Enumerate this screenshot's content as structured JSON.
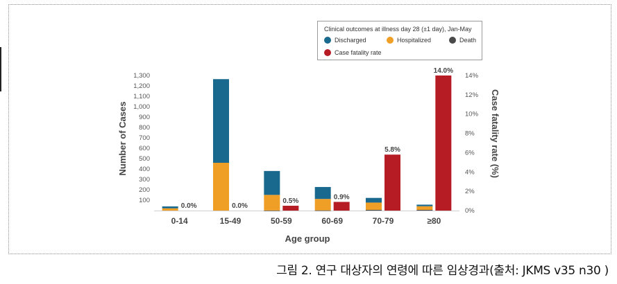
{
  "caption": "그림 2. 연구 대상자의 연령에 따른 임상경과(출처: JKMS v35 n30 )",
  "chart_data": {
    "type": "bar",
    "title": "",
    "xlabel": "Age group",
    "ylabel": "Number of Cases",
    "y2label": "Case fatality rate (%)",
    "categories": [
      "0-14",
      "15-49",
      "50-59",
      "60-69",
      "70-79",
      "≥80"
    ],
    "ylim": [
      0,
      1300
    ],
    "yticks": [
      "100",
      "200",
      "300",
      "400",
      "500",
      "600",
      "700",
      "800",
      "900",
      "1,000",
      "1,100",
      "1,200",
      "1,300"
    ],
    "y2lim": [
      0,
      14
    ],
    "y2ticks": [
      "0%",
      "2%",
      "4%",
      "6%",
      "8%",
      "10%",
      "12%",
      "14%"
    ],
    "stack_series": [
      {
        "name": "Death",
        "color": "#4a4a4a",
        "values": [
          0,
          0,
          1,
          2,
          7,
          7
        ]
      },
      {
        "name": "Hospitalized",
        "color": "#ef9f25",
        "values": [
          22,
          460,
          150,
          110,
          70,
          35
        ]
      },
      {
        "name": "Discharged",
        "color": "#19698e",
        "values": [
          18,
          805,
          230,
          115,
          45,
          15
        ]
      }
    ],
    "rate_series": {
      "name": "Case fatality rate",
      "color": "#b51c24",
      "values": [
        0.0,
        0.0,
        0.5,
        0.9,
        5.8,
        14.0
      ]
    },
    "rate_labels": [
      "0.0%",
      "0.0%",
      "0.5%",
      "0.9%",
      "5.8%",
      "14.0%"
    ],
    "legend": {
      "title": "Clinical outcomes at illness day 28 (±1 day), Jan-May",
      "items": [
        "Discharged",
        "Hospitalized",
        "Death",
        "Case fatality rate"
      ],
      "colors": [
        "#19698e",
        "#ef9f25",
        "#4a4a4a",
        "#b51c24"
      ],
      "position": "top-right"
    },
    "grid": false
  }
}
